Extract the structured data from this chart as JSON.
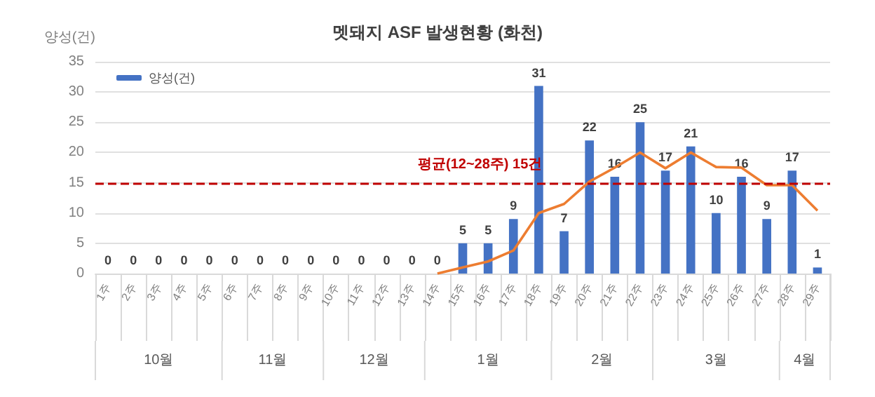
{
  "chart_data": {
    "type": "bar",
    "title": "멧돼지 ASF 발생현황 (화천)",
    "ylabel": "양성(건)",
    "categories": [
      "1주",
      "2주",
      "3주",
      "4주",
      "5주",
      "6주",
      "7주",
      "8주",
      "9주",
      "10주",
      "11주",
      "12주",
      "13주",
      "14주",
      "15주",
      "16주",
      "17주",
      "18주",
      "19주",
      "20주",
      "21주",
      "22주",
      "23주",
      "24주",
      "25주",
      "26주",
      "27주",
      "28주",
      "29주"
    ],
    "series": [
      {
        "name": "양성(건)",
        "color": "#4472c4",
        "values": [
          0,
          0,
          0,
          0,
          0,
          0,
          0,
          0,
          0,
          0,
          0,
          0,
          0,
          0,
          5,
          5,
          9,
          31,
          7,
          22,
          16,
          25,
          17,
          21,
          10,
          16,
          9,
          17,
          1
        ],
        "value_labels": [
          "0",
          "0",
          "0",
          "0",
          "0",
          "0",
          "0",
          "0",
          "0",
          "0",
          "0",
          "0",
          "0",
          "0",
          "5",
          "5",
          "9",
          "31",
          "7",
          "22",
          "16",
          "25",
          "17",
          "21",
          "10",
          "16",
          "9",
          "17",
          "1"
        ]
      },
      {
        "type": "line",
        "color": "#ed7d31",
        "values": [
          null,
          null,
          null,
          null,
          null,
          null,
          null,
          null,
          null,
          null,
          null,
          null,
          null,
          0,
          1,
          2,
          3.8,
          10,
          11.5,
          15.2,
          17.5,
          20,
          17.4,
          20,
          17.6,
          17.5,
          14.6,
          14.6,
          10.4
        ]
      }
    ],
    "ylim": [
      0,
      35
    ],
    "yticks": [
      0,
      5,
      10,
      15,
      20,
      25,
      30,
      35
    ],
    "grid": "y",
    "legend": "top left",
    "marker": "none",
    "ref_lines": [
      {
        "axis": "y",
        "value": 15,
        "label": "평균(12~28주) 15건",
        "color": "#c00000",
        "line_style": "dashed"
      }
    ],
    "annotations": [
      "10월",
      "11월",
      "12월",
      "1월",
      "2월",
      "3월",
      "4월"
    ]
  }
}
